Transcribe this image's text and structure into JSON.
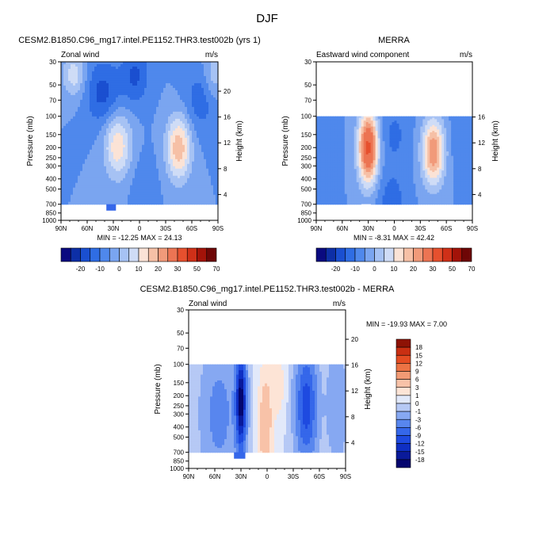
{
  "figure_title": "DJF",
  "chart_data": [
    {
      "id": "panel-model",
      "type": "heatmap",
      "title": "CESM2.B1850.C96_mg17.intel.PE1152.THR3.test002b (yrs 1)",
      "left_string": "Zonal wind",
      "right_string": "m/s",
      "ylabel": "Pressure (mb)",
      "ylabel_right": "Height (km)",
      "xlabel": "",
      "x_ticks": [
        "90N",
        "60N",
        "30N",
        "0",
        "30S",
        "60S",
        "90S"
      ],
      "y_ticks": [
        "30",
        "50",
        "70",
        "100",
        "150",
        "200",
        "250",
        "300",
        "400",
        "500",
        "700",
        "850",
        "1000"
      ],
      "height_ticks": [
        "20",
        "16",
        "12",
        "8",
        "4"
      ],
      "xlim": [
        90,
        -90
      ],
      "ylim": [
        1000,
        30
      ],
      "data_top": 30,
      "min_max": "MIN = -12.25   MAX =  24.13",
      "levels": [
        -25,
        -20,
        -15,
        -10,
        -5,
        0,
        5,
        10,
        15,
        20,
        25,
        30,
        40,
        50,
        60,
        70
      ],
      "colorbar_labels": [
        "-20",
        "-10",
        "0",
        "10",
        "20",
        "30",
        "50",
        "70"
      ],
      "features": [
        {
          "lat": 75,
          "p": 40,
          "value": 13,
          "sx": 9,
          "sy": 0.35
        },
        {
          "lat": 25,
          "p": 190,
          "value": 19,
          "sx": 11,
          "sy": 0.5
        },
        {
          "lat": -45,
          "p": 200,
          "value": 24,
          "sx": 10,
          "sy": 0.5
        },
        {
          "lat": 42,
          "p": 60,
          "value": -12,
          "sx": 14,
          "sy": 0.5
        },
        {
          "lat": 5,
          "p": 40,
          "value": -11,
          "sx": 11,
          "sy": 0.45
        },
        {
          "lat": -70,
          "p": 70,
          "value": -8,
          "sx": 14,
          "sy": 0.5
        },
        {
          "lat": -5,
          "p": 500,
          "value": -4,
          "sx": 10,
          "sy": 0.5
        },
        {
          "lat": -85,
          "p": 40,
          "value": 9,
          "sx": 8,
          "sy": 0.4
        }
      ]
    },
    {
      "id": "panel-obs",
      "type": "heatmap",
      "title": "MERRA",
      "left_string": "Eastward wind component",
      "right_string": "m/s",
      "ylabel": "Pressure (mb)",
      "ylabel_right": "Height (km)",
      "xlabel": "",
      "x_ticks": [
        "90N",
        "60N",
        "30N",
        "0",
        "30S",
        "60S",
        "90S"
      ],
      "y_ticks": [
        "30",
        "50",
        "70",
        "100",
        "150",
        "200",
        "250",
        "300",
        "400",
        "500",
        "700",
        "850",
        "1000"
      ],
      "height_ticks": [
        "16",
        "12",
        "8",
        "4"
      ],
      "xlim": [
        90,
        -90
      ],
      "ylim": [
        1000,
        30
      ],
      "data_top": 100,
      "min_max": "MIN =  -8.31   MAX =  42.42",
      "levels": [
        -25,
        -20,
        -15,
        -10,
        -5,
        0,
        5,
        10,
        15,
        20,
        25,
        30,
        40,
        50,
        60,
        70
      ],
      "colorbar_labels": [
        "-20",
        "-10",
        "0",
        "10",
        "20",
        "30",
        "50",
        "70"
      ],
      "features": [
        {
          "lat": 30,
          "p": 200,
          "value": 42,
          "sx": 8,
          "sy": 0.55
        },
        {
          "lat": -45,
          "p": 220,
          "value": 30,
          "sx": 9,
          "sy": 0.5
        },
        {
          "lat": 3,
          "p": 700,
          "value": -8,
          "sx": 12,
          "sy": 0.5
        },
        {
          "lat": 0,
          "p": 150,
          "value": -6,
          "sx": 12,
          "sy": 0.5
        },
        {
          "lat": -80,
          "p": 150,
          "value": -5,
          "sx": 10,
          "sy": 0.6
        },
        {
          "lat": 80,
          "p": 200,
          "value": -3,
          "sx": 10,
          "sy": 0.6
        }
      ]
    },
    {
      "id": "panel-diff",
      "type": "heatmap",
      "title": "CESM2.B1850.C96_mg17.intel.PE1152.THR3.test002b - MERRA",
      "left_string": "Zonal wind",
      "right_string": "m/s",
      "ylabel": "Pressure (mb)",
      "ylabel_right": "Height (km)",
      "xlabel": "",
      "x_ticks": [
        "90N",
        "60N",
        "30N",
        "0",
        "30S",
        "60S",
        "90S"
      ],
      "y_ticks": [
        "30",
        "50",
        "70",
        "100",
        "150",
        "200",
        "250",
        "300",
        "400",
        "500",
        "700",
        "850",
        "1000"
      ],
      "height_ticks": [
        "20",
        "16",
        "12",
        "8",
        "4"
      ],
      "xlim": [
        90,
        -90
      ],
      "ylim": [
        1000,
        30
      ],
      "data_top": 100,
      "min_max": "MIN = -19.93   MAX =   7.00",
      "levels": [
        -21,
        -18,
        -15,
        -12,
        -9,
        -6,
        -3,
        -1,
        0,
        1,
        3,
        6,
        9,
        12,
        15,
        18,
        21
      ],
      "colorbar_labels": [
        "18",
        "15",
        "12",
        "9",
        "6",
        "3",
        "1",
        "0",
        "-1",
        "-3",
        "-6",
        "-9",
        "-12",
        "-15",
        "-18"
      ],
      "features": [
        {
          "lat": 30,
          "p": 230,
          "value": -20,
          "sx": 4,
          "sy": 0.7
        },
        {
          "lat": 2,
          "p": 400,
          "value": 6,
          "sx": 5,
          "sy": 0.8
        },
        {
          "lat": -45,
          "p": 250,
          "value": -11,
          "sx": 8,
          "sy": 0.8
        },
        {
          "lat": 55,
          "p": 300,
          "value": -4,
          "sx": 14,
          "sy": 1.0
        },
        {
          "lat": -12,
          "p": 160,
          "value": 2,
          "sx": 6,
          "sy": 0.5
        },
        {
          "lat": -80,
          "p": 250,
          "value": -3,
          "sx": 8,
          "sy": 0.8
        }
      ]
    }
  ]
}
